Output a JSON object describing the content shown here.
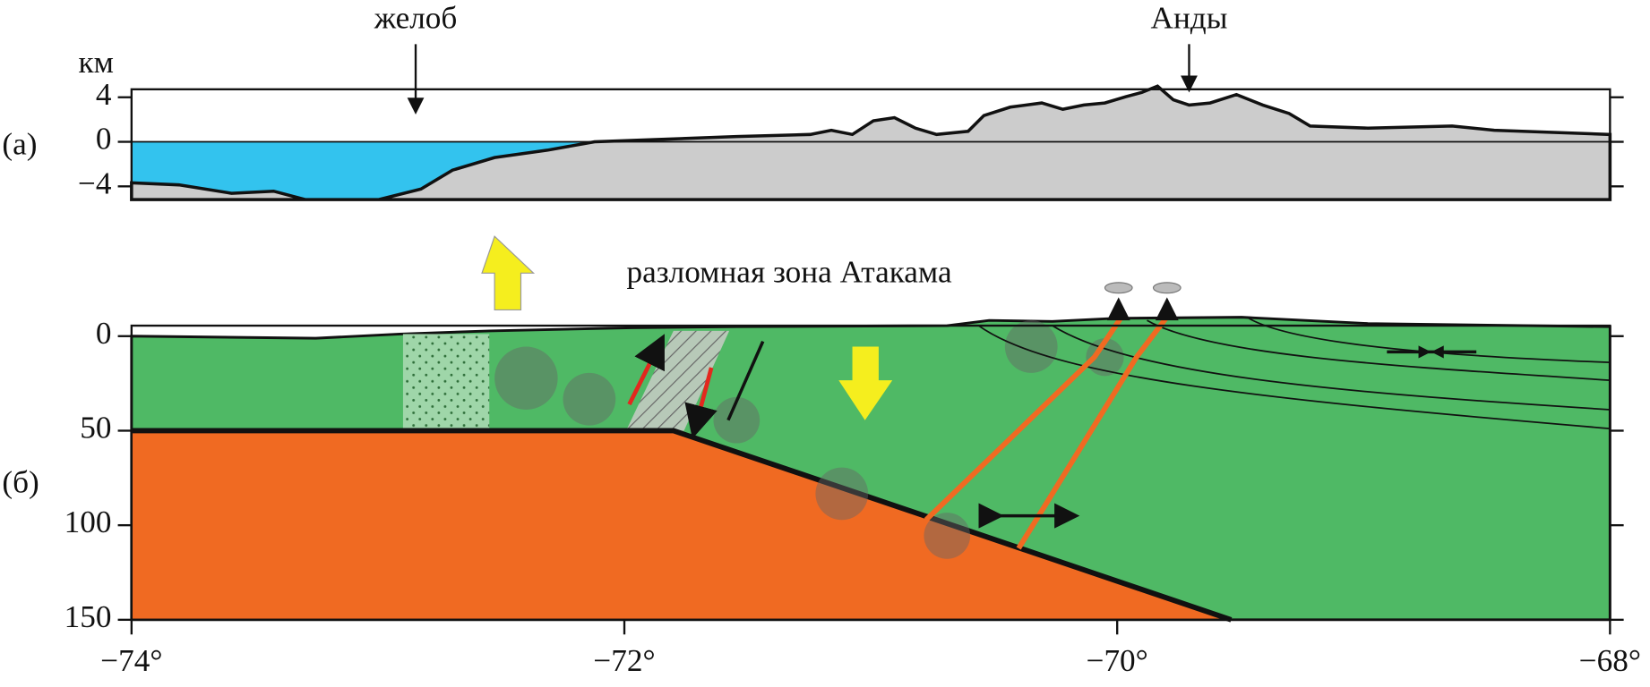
{
  "labels": {
    "trench": "желоб",
    "andes": "Анды",
    "km": "км",
    "panel_a": "(а)",
    "panel_b": "(б)",
    "fault_zone": "разломная зона Атакама"
  },
  "panel_a": {
    "yticks": [
      4,
      0,
      {
        "value": -4,
        "label": "−4"
      }
    ]
  },
  "panel_b": {
    "yticks": [
      0,
      50,
      100,
      150
    ]
  },
  "xticks": [
    {
      "value": -74,
      "label": "−74°"
    },
    {
      "value": -72,
      "label": "−72°"
    },
    {
      "value": -70,
      "label": "−70°"
    },
    {
      "value": -68,
      "label": "−68°"
    }
  ]
}
